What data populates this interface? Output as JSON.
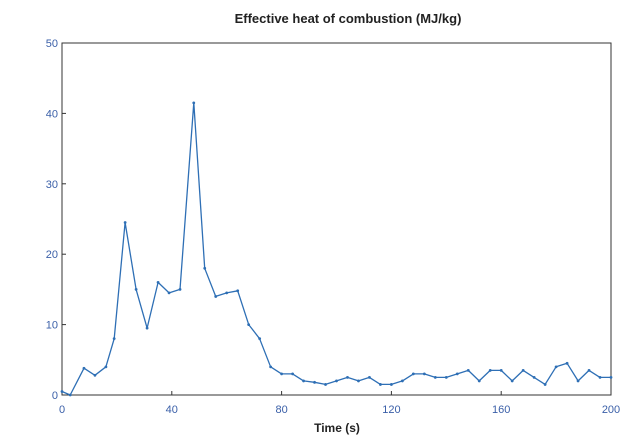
{
  "chart_data": {
    "type": "line",
    "title": "Effective heat of combustion (MJ/kg)",
    "xlabel": "Time (s)",
    "ylabel": "",
    "xlim": [
      0,
      200
    ],
    "ylim": [
      0,
      50
    ],
    "xticks": [
      0,
      40,
      80,
      120,
      160,
      200
    ],
    "yticks": [
      0,
      10,
      20,
      30,
      40,
      50
    ],
    "grid": false,
    "line_color": "#2e6fb5",
    "series": [
      {
        "x": [
          0,
          3,
          8,
          12,
          16,
          19,
          23,
          27,
          31,
          35,
          39,
          43,
          48,
          52,
          56,
          60,
          64,
          68,
          72,
          76,
          80,
          84,
          88,
          92,
          96,
          100,
          104,
          108,
          112,
          116,
          120,
          124,
          128,
          132,
          136,
          140,
          144,
          148,
          152,
          156,
          160,
          164,
          168,
          172,
          176,
          180,
          184,
          188,
          192,
          196,
          200
        ],
        "y": [
          0.5,
          0,
          3.8,
          2.8,
          4,
          8,
          24.5,
          15,
          9.5,
          16,
          14.5,
          15,
          41.5,
          18,
          14,
          14.5,
          14.8,
          10,
          8,
          4,
          3,
          3,
          2,
          1.8,
          1.5,
          2,
          2.5,
          2,
          2.5,
          1.5,
          1.5,
          2,
          3,
          3,
          2.5,
          2.5,
          3,
          3.5,
          2,
          3.5,
          3.5,
          2,
          3.5,
          2.5,
          1.5,
          4,
          4.5,
          2,
          3.5,
          2.5,
          2.5
        ]
      }
    ]
  }
}
